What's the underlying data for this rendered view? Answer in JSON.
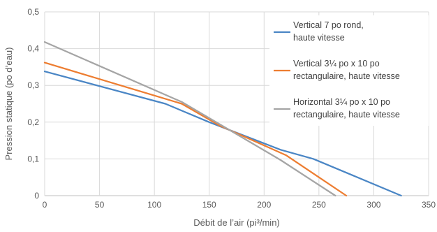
{
  "chart_data": {
    "type": "line",
    "xlabel": "Débit de l’air (pi³/min)",
    "ylabel": "Pression statique (po d’eau)",
    "xlim": [
      0,
      350
    ],
    "ylim": [
      0,
      0.5
    ],
    "x_ticks": [
      0,
      50,
      100,
      150,
      200,
      250,
      300,
      350
    ],
    "y_ticks": [
      0,
      0.1,
      0.2,
      0.3,
      0.4,
      0.5
    ],
    "x_tick_labels": [
      "0",
      "50",
      "100",
      "150",
      "200",
      "250",
      "300",
      "350"
    ],
    "y_tick_labels": [
      "0",
      "0,1",
      "0,2",
      "0,3",
      "0,4",
      "0,5"
    ],
    "grid": true,
    "legend_position": "right",
    "series": [
      {
        "name": "Vertical 7 po rond, haute vitesse",
        "legend_lines": [
          "Vertical 7 po rond,",
          "haute vitesse"
        ],
        "color": "#4A86C5",
        "x": [
          0,
          110,
          150,
          215,
          245,
          325
        ],
        "y": [
          0.338,
          0.25,
          0.2,
          0.125,
          0.1,
          0.0
        ]
      },
      {
        "name": "Vertical 3¼ po x 10 po rectangulaire, haute vitesse",
        "legend_lines": [
          "Vertical 3¼ po x 10 po",
          "rectangulaire, haute vitesse"
        ],
        "color": "#ED7D31",
        "x": [
          0,
          125,
          160,
          220,
          275
        ],
        "y": [
          0.362,
          0.25,
          0.19,
          0.11,
          0.0
        ]
      },
      {
        "name": "Horizontal 3¼ po x 10 po rectangulaire, haute vitesse",
        "legend_lines": [
          "Horizontal 3¼ po x 10 po",
          "rectangulaire, haute vitesse"
        ],
        "color": "#A5A5A5",
        "x": [
          0,
          125,
          215,
          265
        ],
        "y": [
          0.418,
          0.255,
          0.097,
          0.0
        ]
      }
    ]
  }
}
